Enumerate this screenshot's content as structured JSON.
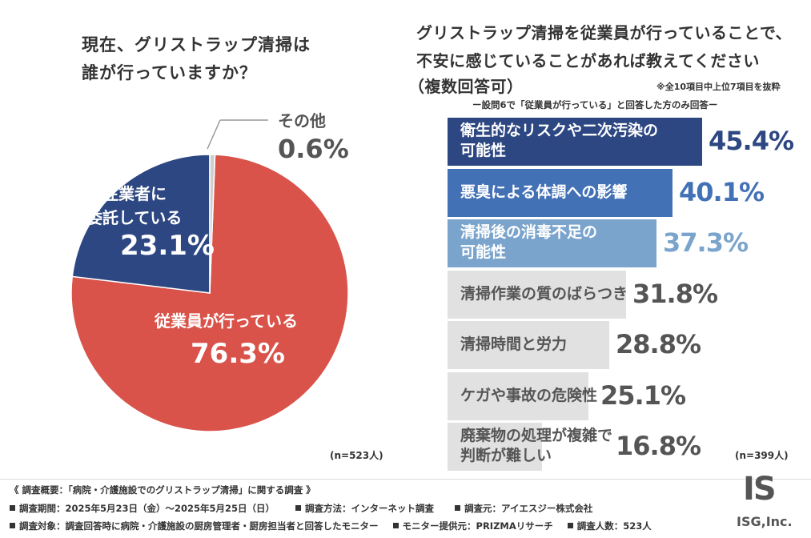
{
  "left_chart": {
    "title_line1": "現在、グリストラップ清掃は",
    "title_line2": "誰が行っていますか？",
    "n_label": "(n=523人)"
  },
  "right_chart": {
    "title_line1": "グリストラップ清掃を従業員が行っていることで、",
    "title_line2": "不安に感じていることがあれば教えてください",
    "title_line3": "（複数回答可）",
    "note": "※全10項目中上位7項目を抜粋",
    "subtitle": "ー設問6で「従業員が行っている」と回答した方のみ回答ー",
    "n_label": "(n=399人)"
  },
  "colors": {
    "red": "#d9534a",
    "navy": "#2d4782",
    "mid_blue": "#4371b6",
    "light_blue": "#7ba4cd",
    "gray_bar": "#e1e1e1",
    "gray_text": "#555555"
  },
  "chart_data": [
    {
      "type": "pie",
      "title": "現在、グリストラップ清掃は誰が行っていますか？",
      "slices": [
        {
          "label": "従業員が行っている",
          "value": 76.3,
          "value_text": "76.3%"
        },
        {
          "label_line1": "外注業者に",
          "label_line2": "委託している",
          "value": 23.1,
          "value_text": "23.1%"
        },
        {
          "label": "その他",
          "value": 0.6,
          "value_text": "0.6%"
        }
      ],
      "n": "n=523人"
    },
    {
      "type": "bar",
      "orientation": "horizontal",
      "title": "グリストラップ清掃を従業員が行っていることで、不安に感じていることがあれば教えてください（複数回答可）",
      "xlim": [
        0,
        45.4
      ],
      "bars": [
        {
          "label_line1": "衛生的なリスクや二次汚染の",
          "label_line2": "可能性",
          "value": 45.4,
          "value_text": "45.4%"
        },
        {
          "label_line1": "悪臭による体調への影響",
          "label_line2": "",
          "value": 40.1,
          "value_text": "40.1%"
        },
        {
          "label_line1": "清掃後の消毒不足の",
          "label_line2": "可能性",
          "value": 37.3,
          "value_text": "37.3%"
        },
        {
          "label_line1": "清掃作業の質のばらつき",
          "label_line2": "",
          "value": 31.8,
          "value_text": "31.8%"
        },
        {
          "label_line1": "清掃時間と労力",
          "label_line2": "",
          "value": 28.8,
          "value_text": "28.8%"
        },
        {
          "label_line1": "ケガや事故の危険性",
          "label_line2": "",
          "value": 25.1,
          "value_text": "25.1%"
        },
        {
          "label_line1": "廃棄物の処理が複雑で",
          "label_line2": "判断が難しい",
          "value": 16.8,
          "value_text": "16.8%"
        }
      ],
      "n": "n=399人"
    }
  ],
  "footer": {
    "overview": "《 調査概要：「病院・介護施設でのグリストラップ清掃」に関する調査 》",
    "period": "調査期間：2025年5月23日（金）〜2025年5月25日（日）",
    "method": "調査方法：インターネット調査",
    "source": "調査元：アイエスジー株式会社",
    "target": "調査対象：調査回答時に病院・介護施設の厨房管理者・厨房担当者と回答したモニター",
    "provider": "モニター提供元：PRIZMAリサーチ",
    "count": "調査人数：523人"
  },
  "logo": {
    "mark": "IS",
    "company": "ISG,Inc."
  }
}
